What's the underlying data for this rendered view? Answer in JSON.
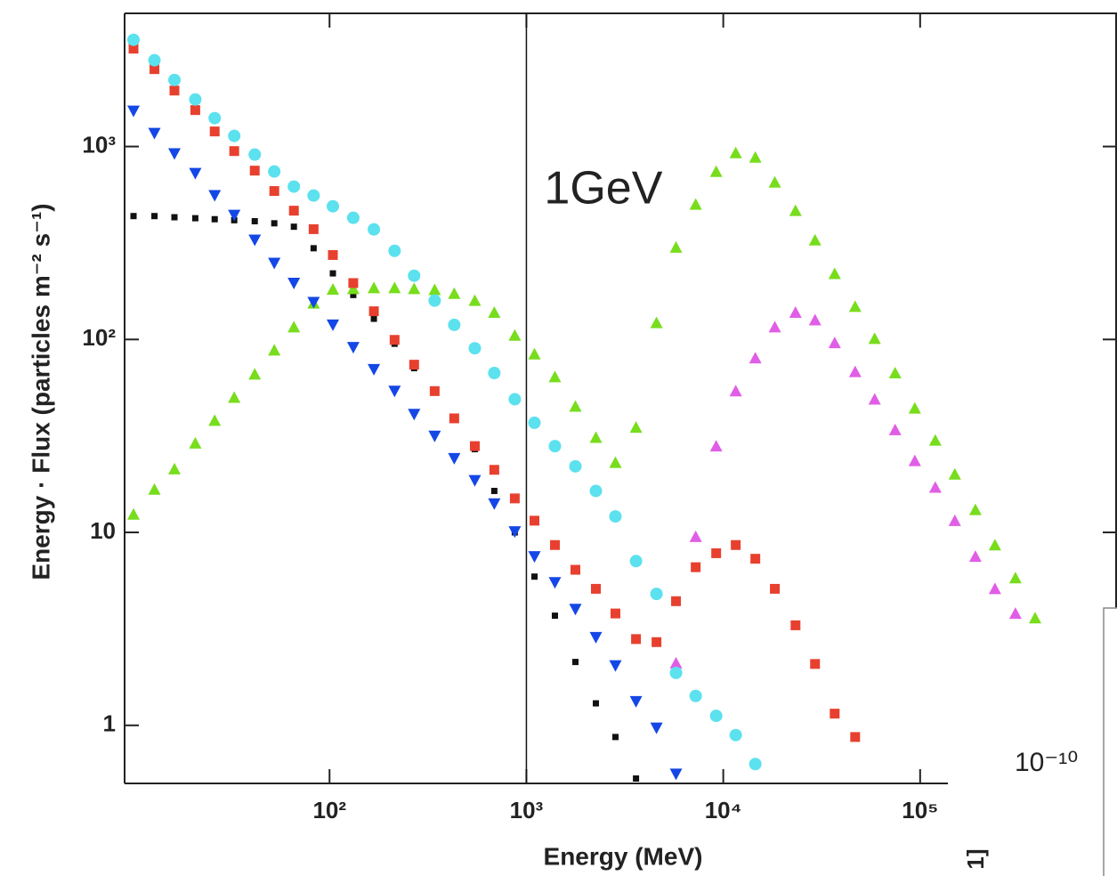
{
  "chart_data": {
    "type": "scatter",
    "x_label": "Energy (MeV)",
    "y_label": "Energy · Flux (particles m⁻² s⁻¹)",
    "x_log": true,
    "y_log": true,
    "xlim": [
      9.1,
      1000000
    ],
    "ylim": [
      0.5,
      4900
    ],
    "xticks": [
      {
        "value": 100,
        "label": "10²"
      },
      {
        "value": 1000,
        "label": "10³"
      },
      {
        "value": 10000,
        "label": "10⁴"
      },
      {
        "value": 100000,
        "label": "10⁵"
      }
    ],
    "yticks": [
      1,
      10,
      {
        "value": 100,
        "label": "10²"
      },
      {
        "value": 1000,
        "label": "10³"
      }
    ],
    "vline": {
      "x": 1000,
      "label": "1GeV"
    },
    "overlay_text": "10⁻¹⁰",
    "edge_fragment": "1]",
    "x": [
      10.1,
      12.9,
      16.3,
      20.8,
      26.1,
      32.8,
      41.7,
      52.4,
      65.9,
      83.0,
      104,
      132,
      168,
      214,
      269,
      342,
      430,
      547,
      687,
      873,
      1099,
      1396,
      1774,
      2254,
      2833,
      3604,
      4580,
      5754,
      7244,
      9205,
      11570,
      14550,
      18280,
      23280,
      29250,
      36810,
      46770,
      58750,
      74650,
      93970,
      119400,
      150000,
      190900,
      239900,
      304800,
      383700
    ],
    "series": [
      {
        "color": "#111111",
        "marker": "dot",
        "values": [
          436,
          436,
          430,
          425,
          420,
          415,
          410,
          400,
          384,
          297,
          220,
          170,
          128,
          95,
          71,
          53,
          39,
          27,
          16.4,
          10,
          5.9,
          3.7,
          2.13,
          1.3,
          0.87,
          0.53,
          null,
          null,
          null,
          null,
          null,
          null,
          null,
          null,
          null,
          null,
          null,
          null,
          null,
          null,
          null,
          null,
          null,
          null,
          null,
          null
        ]
      },
      {
        "color": "#77dd1c",
        "marker": "triangle-up",
        "values": [
          12.4,
          16.7,
          21.3,
          29,
          38,
          50,
          66,
          88,
          116,
          154,
          182,
          183,
          185,
          185,
          183,
          181,
          173,
          159,
          138,
          105,
          84,
          64,
          45,
          31,
          23,
          35,
          122,
          300,
          501,
          741,
          927,
          879,
          653,
          465,
          327,
          219,
          148,
          101,
          67,
          44,
          30,
          20,
          13.1,
          8.6,
          5.8,
          3.6
        ]
      },
      {
        "color": "#e05ee6",
        "marker": "triangle-up",
        "values": [
          null,
          null,
          null,
          null,
          null,
          null,
          null,
          null,
          null,
          null,
          null,
          null,
          null,
          null,
          null,
          null,
          null,
          null,
          null,
          null,
          null,
          null,
          null,
          null,
          null,
          null,
          null,
          2.1,
          9.5,
          28,
          54,
          80,
          116,
          138,
          126,
          96,
          68,
          49,
          34,
          23.5,
          17.1,
          11.5,
          7.5,
          5.1,
          3.8,
          null
        ]
      },
      {
        "color": "#1447e6",
        "marker": "triangle-down",
        "values": [
          1528,
          1172,
          919,
          727,
          558,
          441,
          328,
          249,
          196,
          156,
          119,
          91,
          70,
          54,
          41,
          31.6,
          24.2,
          18.6,
          14.1,
          10.1,
          7.5,
          5.5,
          4.0,
          2.86,
          2.04,
          1.33,
          0.97,
          0.56,
          null,
          null,
          null,
          null,
          null,
          null,
          null,
          null,
          null,
          null,
          null,
          null,
          null,
          null,
          null,
          null,
          null,
          null
        ]
      },
      {
        "color": "#e8402f",
        "marker": "square",
        "values": [
          3215,
          2518,
          1950,
          1545,
          1197,
          947,
          750,
          588,
          465,
          373,
          274,
          196,
          140,
          99.5,
          74,
          54,
          39,
          28,
          21.1,
          15.0,
          11.5,
          8.6,
          6.4,
          5.1,
          3.8,
          2.8,
          2.7,
          4.4,
          6.6,
          7.8,
          8.6,
          7.3,
          5.1,
          3.3,
          2.08,
          1.15,
          0.87,
          null,
          null,
          null,
          null,
          null,
          null,
          null,
          null,
          null
        ]
      },
      {
        "color": "#5ce1ee",
        "marker": "circle",
        "values": [
          3573,
          2800,
          2213,
          1754,
          1403,
          1135,
          908,
          742,
          620,
          557,
          490,
          427,
          372,
          288,
          214,
          159,
          119,
          90,
          67,
          49,
          37,
          28,
          22,
          16.4,
          12.1,
          7.1,
          4.8,
          1.87,
          1.42,
          1.12,
          0.89,
          0.63,
          null,
          null,
          null,
          null,
          null,
          null,
          null,
          null,
          null,
          null,
          null,
          null,
          null,
          null
        ]
      }
    ]
  }
}
